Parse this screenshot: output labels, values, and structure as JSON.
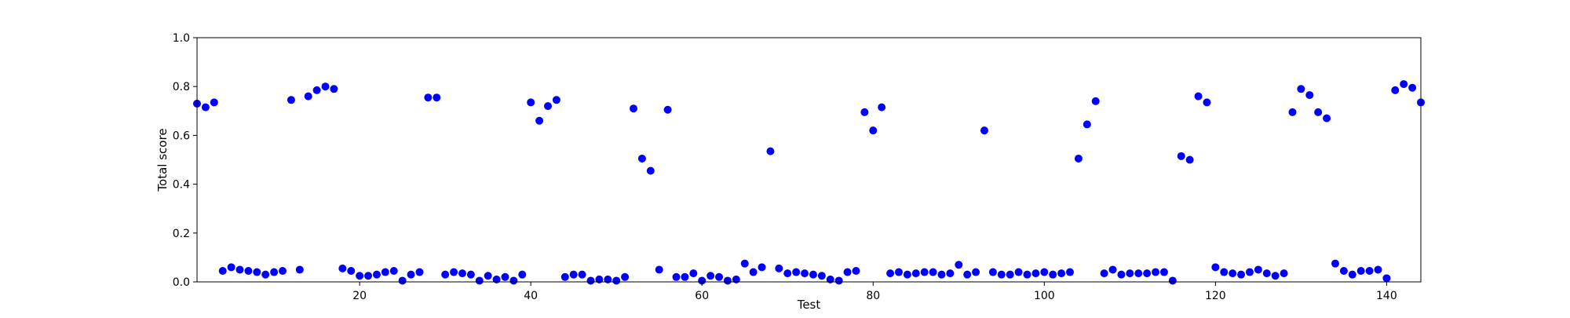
{
  "chart_data": {
    "type": "scatter",
    "title": "",
    "xlabel": "Test",
    "ylabel": "Total score",
    "xlim": [
      1,
      144
    ],
    "ylim": [
      0.0,
      1.0
    ],
    "x_ticks": [
      20,
      40,
      60,
      80,
      100,
      120,
      140
    ],
    "x_tick_labels": [
      "20",
      "40",
      "60",
      "80",
      "100",
      "120",
      "140"
    ],
    "y_ticks": [
      0.0,
      0.2,
      0.4,
      0.6,
      0.8,
      1.0
    ],
    "y_tick_labels": [
      "0.0",
      "0.2",
      "0.4",
      "0.6",
      "0.8",
      "1.0"
    ],
    "grid": false,
    "marker_color": "#0000ff",
    "series": [
      {
        "name": "Total score",
        "x": [
          1,
          2,
          3,
          4,
          5,
          6,
          7,
          8,
          9,
          10,
          11,
          12,
          13,
          14,
          15,
          16,
          17,
          18,
          19,
          20,
          21,
          22,
          23,
          24,
          25,
          26,
          27,
          28,
          29,
          30,
          31,
          32,
          33,
          34,
          35,
          36,
          37,
          38,
          39,
          40,
          41,
          42,
          43,
          44,
          45,
          46,
          47,
          48,
          49,
          50,
          51,
          52,
          53,
          54,
          55,
          56,
          57,
          58,
          59,
          60,
          61,
          62,
          63,
          64,
          65,
          66,
          67,
          68,
          69,
          70,
          71,
          72,
          73,
          74,
          75,
          76,
          77,
          78,
          79,
          80,
          81,
          82,
          83,
          84,
          85,
          86,
          87,
          88,
          89,
          90,
          91,
          92,
          93,
          94,
          95,
          96,
          97,
          98,
          99,
          100,
          101,
          102,
          103,
          104,
          105,
          106,
          107,
          108,
          109,
          110,
          111,
          112,
          113,
          114,
          115,
          116,
          117,
          118,
          119,
          120,
          121,
          122,
          123,
          124,
          125,
          126,
          127,
          128,
          129,
          130,
          131,
          132,
          133,
          134,
          135,
          136,
          137,
          138,
          139,
          140,
          141,
          142,
          143,
          144
        ],
        "y": [
          0.73,
          0.715,
          0.735,
          0.045,
          0.06,
          0.05,
          0.045,
          0.04,
          0.03,
          0.04,
          0.045,
          0.745,
          0.05,
          0.76,
          0.785,
          0.8,
          0.79,
          0.055,
          0.045,
          0.025,
          0.025,
          0.03,
          0.04,
          0.045,
          0.005,
          0.03,
          0.04,
          0.755,
          0.755,
          0.03,
          0.04,
          0.035,
          0.03,
          0.005,
          0.025,
          0.01,
          0.02,
          0.005,
          0.03,
          0.735,
          0.66,
          0.72,
          0.745,
          0.02,
          0.03,
          0.03,
          0.005,
          0.01,
          0.01,
          0.005,
          0.02,
          0.71,
          0.505,
          0.455,
          0.05,
          0.705,
          0.02,
          0.02,
          0.035,
          0.005,
          0.025,
          0.02,
          0.005,
          0.01,
          0.075,
          0.04,
          0.06,
          0.535,
          0.055,
          0.035,
          0.04,
          0.035,
          0.03,
          0.025,
          0.01,
          0.005,
          0.04,
          0.045,
          0.695,
          0.62,
          0.715,
          0.035,
          0.04,
          0.03,
          0.035,
          0.04,
          0.04,
          0.03,
          0.035,
          0.07,
          0.03,
          0.04,
          0.62,
          0.04,
          0.03,
          0.03,
          0.04,
          0.03,
          0.035,
          0.04,
          0.03,
          0.035,
          0.04,
          0.505,
          0.645,
          0.74,
          0.035,
          0.05,
          0.03,
          0.035,
          0.035,
          0.035,
          0.04,
          0.04,
          0.005,
          0.515,
          0.5,
          0.76,
          0.735,
          0.06,
          0.04,
          0.035,
          0.03,
          0.04,
          0.05,
          0.035,
          0.025,
          0.035,
          0.695,
          0.79,
          0.765,
          0.695,
          0.67,
          0.075,
          0.045,
          0.03,
          0.045,
          0.045,
          0.05,
          0.015,
          0.785,
          0.81,
          0.795,
          0.735
        ]
      }
    ]
  }
}
